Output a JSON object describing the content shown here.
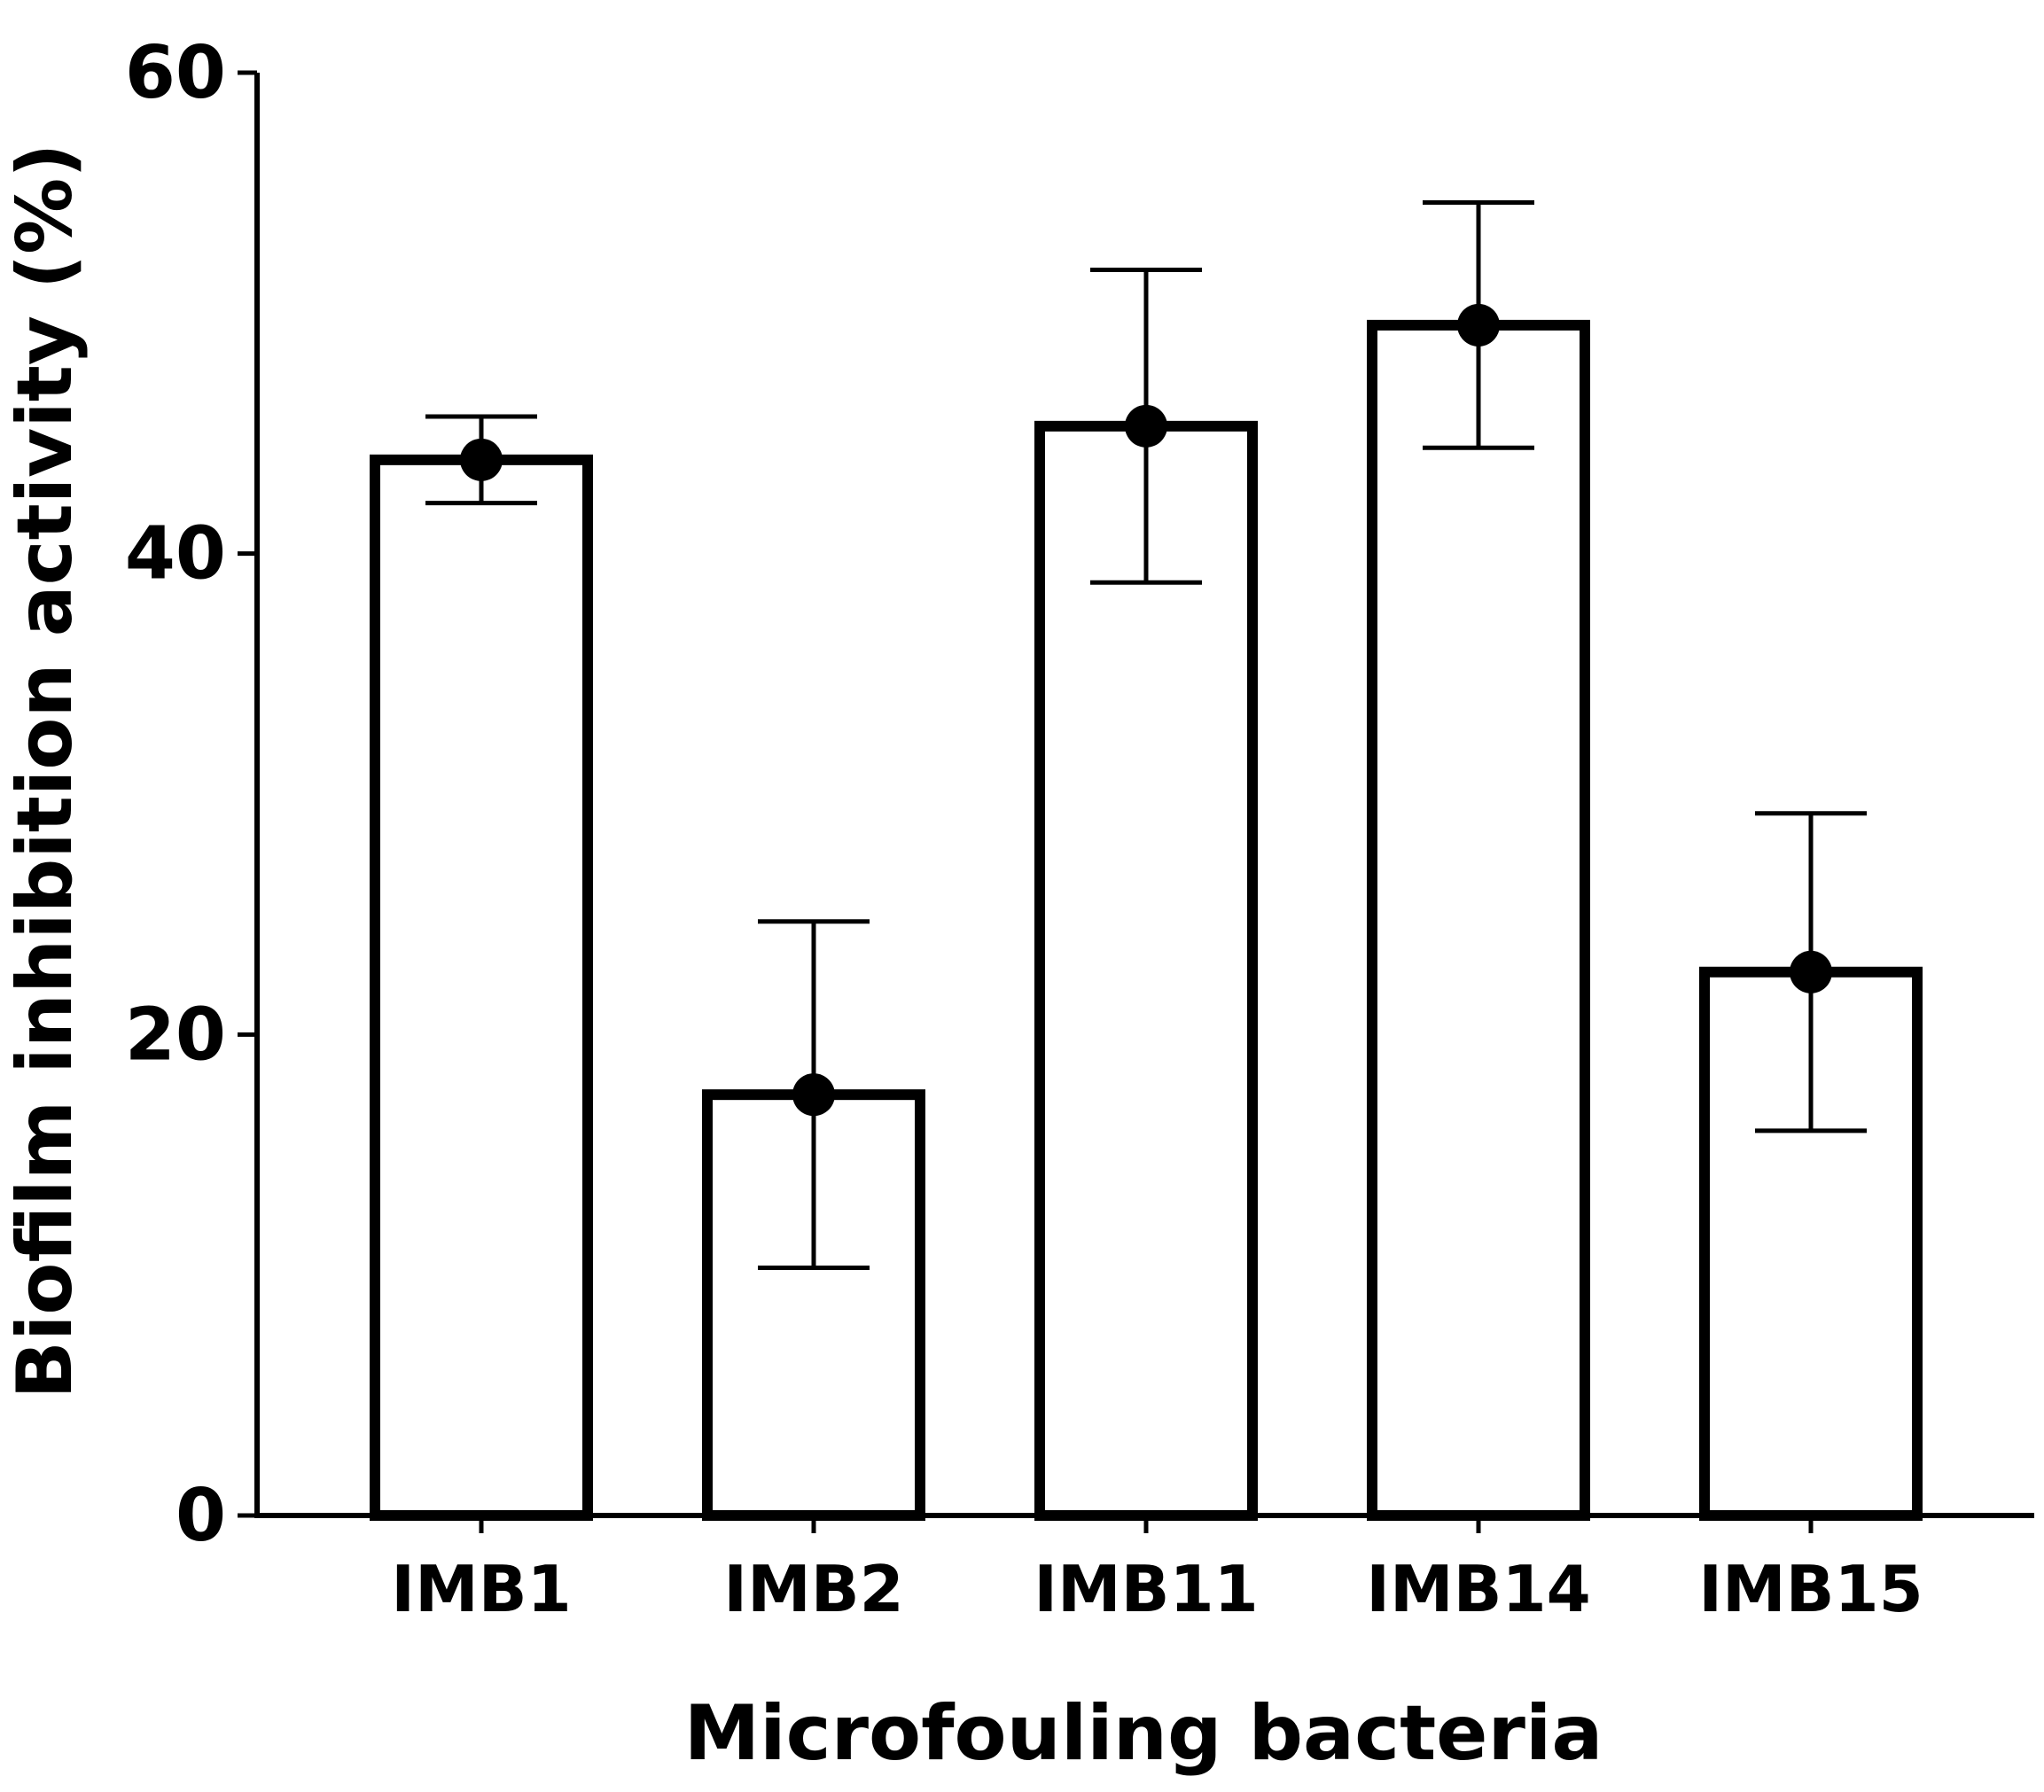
{
  "chart_data": {
    "type": "bar",
    "title": "",
    "xlabel": "Microfouling bacteria",
    "ylabel": "Biofilm inhibition activity (%)",
    "ylim": [
      0,
      60
    ],
    "yticks": [
      0,
      20,
      40,
      60
    ],
    "categories": [
      "IMB1",
      "IMB2",
      "IMB11",
      "IMB14",
      "IMB15"
    ],
    "series": [
      {
        "values": [
          43.9,
          17.5,
          45.3,
          49.5,
          22.6
        ],
        "error": [
          1.8,
          7.2,
          6.5,
          5.1,
          6.6
        ]
      }
    ],
    "grid": false,
    "bar_fill": "#ffffff",
    "bar_stroke": "#000000",
    "marker": "filled-circle"
  }
}
